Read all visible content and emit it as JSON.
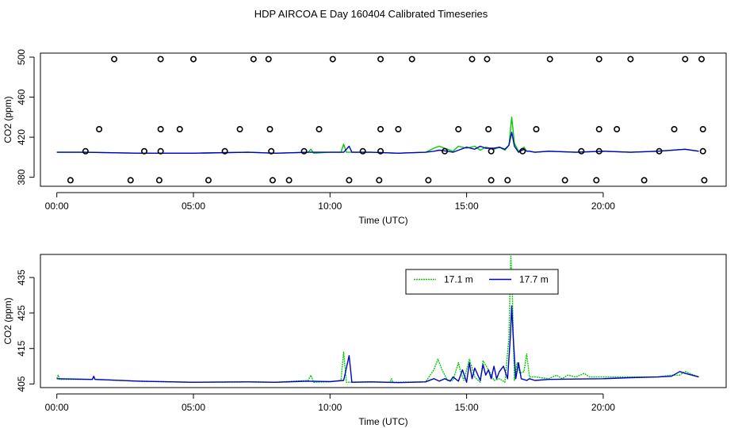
{
  "figure": {
    "title": "HDP AIRCOA E  Day 160404  Calibrated Timeseries"
  },
  "chart_data": [
    {
      "type": "scatter",
      "xlabel": "Time (UTC)",
      "ylabel": "CO2 (ppm)",
      "xlim": [
        -0.6,
        24.5
      ],
      "ylim": [
        371,
        504
      ],
      "x_ticks": [
        0,
        5,
        10,
        15,
        20
      ],
      "x_tick_labels": [
        "00:00",
        "05:00",
        "10:00",
        "15:00",
        "20:00"
      ],
      "y_ticks": [
        380,
        420,
        460,
        500
      ],
      "y_tick_labels": [
        "380",
        "420",
        "460",
        "500"
      ],
      "grid": false,
      "calibration_points": {
        "marker": "open-circle",
        "x": [
          2.1,
          3.8,
          5.0,
          7.2,
          7.75,
          10.1,
          11.85,
          13.0,
          15.2,
          15.75,
          18.05,
          19.85,
          21.0,
          23.0,
          23.6,
          1.55,
          3.8,
          4.5,
          6.7,
          7.8,
          9.6,
          11.85,
          12.5,
          14.7,
          15.8,
          17.55,
          19.85,
          20.5,
          22.6,
          23.65,
          1.05,
          3.2,
          3.8,
          6.15,
          7.85,
          9.05,
          11.2,
          11.85,
          14.2,
          15.9,
          17.05,
          19.2,
          19.85,
          22.05,
          23.65,
          0.5,
          2.7,
          3.75,
          5.55,
          7.9,
          8.5,
          10.7,
          11.8,
          13.6,
          15.9,
          16.5,
          18.6,
          19.75,
          21.5,
          23.7
        ],
        "y": [
          498,
          498,
          498,
          498,
          498,
          498,
          498,
          498,
          498,
          498,
          498,
          498,
          498,
          498,
          498,
          428,
          428,
          428,
          428,
          428,
          428,
          428,
          428,
          428,
          428,
          428,
          428,
          428,
          428,
          428,
          406,
          406,
          406,
          406,
          406,
          406,
          406,
          406,
          406,
          406,
          406,
          406,
          406,
          406,
          406,
          377,
          377,
          377,
          377,
          377,
          377,
          377,
          377,
          377,
          377,
          377,
          377,
          377,
          377,
          377
        ]
      },
      "series": [
        {
          "color": "#00cc00",
          "x": [
            0,
            1,
            3,
            5,
            7,
            8,
            9.2,
            9.3,
            9.4,
            10,
            10.4,
            10.5,
            10.6,
            11.5,
            12.5,
            13.5,
            13.8,
            14,
            14.3,
            14.5,
            14.7,
            15,
            15.3,
            15.5,
            15.7,
            16,
            16.2,
            16.4,
            16.55,
            16.65,
            16.75,
            16.9,
            17.1,
            17.2,
            17.3,
            17.5,
            18,
            19,
            20,
            21,
            22,
            23,
            23.5
          ],
          "y": [
            405,
            405,
            404,
            404,
            405,
            404,
            405,
            408,
            404,
            405,
            405,
            413,
            405,
            405,
            404,
            405,
            409,
            411,
            408,
            406,
            411,
            409,
            411,
            407,
            410,
            408,
            410,
            407,
            412,
            440,
            414,
            406,
            410,
            406,
            406,
            405,
            406,
            405,
            406,
            405,
            406,
            408,
            406
          ]
        },
        {
          "color": "#0000cc",
          "x": [
            0,
            1,
            3,
            5,
            7,
            8,
            9.2,
            10,
            10.5,
            10.7,
            10.8,
            11.5,
            12.5,
            13.5,
            13.8,
            14,
            14.3,
            14.5,
            14.7,
            15,
            15.3,
            15.5,
            15.7,
            16,
            16.2,
            16.4,
            16.55,
            16.65,
            16.75,
            16.9,
            17.1,
            17.2,
            17.3,
            17.5,
            18,
            19,
            20,
            21,
            22,
            23,
            23.5
          ],
          "y": [
            405,
            405,
            404,
            404,
            405,
            404,
            405,
            405,
            405,
            411,
            405,
            405,
            404,
            405,
            406,
            407,
            406,
            405,
            407,
            410,
            408,
            411,
            409,
            409,
            410,
            408,
            412,
            425,
            411,
            405,
            408,
            406,
            406,
            405,
            406,
            405,
            406,
            405,
            406,
            408,
            406
          ]
        }
      ]
    },
    {
      "type": "line",
      "xlabel": "Time (UTC)",
      "ylabel": "CO2 (ppm)",
      "xlim": [
        -0.6,
        24.5
      ],
      "ylim": [
        404,
        441.5
      ],
      "x_ticks": [
        0,
        5,
        10,
        15,
        20
      ],
      "x_tick_labels": [
        "00:00",
        "05:00",
        "10:00",
        "15:00",
        "20:00"
      ],
      "y_ticks": [
        405,
        415,
        425,
        435
      ],
      "y_tick_labels": [
        "405",
        "415",
        "425",
        "435"
      ],
      "grid": false,
      "legend": {
        "position": "top-right"
      },
      "series": [
        {
          "name": "17.1 m",
          "color": "#00cc00",
          "linestyle": "dotted",
          "x": [
            0,
            0.05,
            0.1,
            1.3,
            1.35,
            1.4,
            3,
            5,
            7,
            8,
            9.2,
            9.3,
            9.4,
            10,
            10.4,
            10.5,
            10.6,
            11.5,
            12.2,
            12.25,
            12.3,
            13.5,
            13.8,
            13.95,
            14.1,
            14.3,
            14.5,
            14.7,
            14.8,
            14.9,
            15,
            15.1,
            15.3,
            15.5,
            15.6,
            15.8,
            16,
            16.2,
            16.4,
            16.55,
            16.62,
            16.67,
            16.75,
            16.85,
            16.95,
            17.1,
            17.2,
            17.3,
            17.5,
            18,
            18.3,
            18.5,
            18.7,
            19,
            19.3,
            19.5,
            20,
            21,
            22,
            22.5,
            22.8,
            23,
            23.5
          ],
          "y": [
            406.5,
            407.5,
            406.3,
            406.3,
            407,
            406.3,
            405.8,
            405.5,
            405.6,
            405.5,
            406,
            407.5,
            405.5,
            405.6,
            406,
            414,
            405.5,
            405.6,
            405.5,
            406.5,
            405.5,
            405.6,
            409,
            412,
            409,
            406,
            406,
            411,
            408,
            406,
            409,
            412,
            407,
            405.5,
            411.5,
            409,
            406,
            406.5,
            405.5,
            418,
            441,
            431,
            406,
            411,
            408,
            408.5,
            413.5,
            407,
            407,
            406.5,
            407.5,
            406.5,
            407.5,
            407,
            408,
            407,
            407,
            407,
            407,
            407.5,
            407.5,
            408.5,
            407
          ]
        },
        {
          "name": "17.7 m",
          "color": "#0000cc",
          "linestyle": "solid",
          "x": [
            0,
            1.3,
            1.35,
            1.4,
            3,
            5,
            7,
            8,
            9.2,
            10,
            10.5,
            10.7,
            10.8,
            11.5,
            12.5,
            13.5,
            13.8,
            14,
            14.2,
            14.4,
            14.5,
            14.7,
            14.85,
            15,
            15.1,
            15.2,
            15.3,
            15.5,
            15.6,
            15.7,
            15.8,
            15.9,
            16,
            16.1,
            16.2,
            16.35,
            16.5,
            16.6,
            16.65,
            16.7,
            16.8,
            16.9,
            17.0,
            17.2,
            17.3,
            17.5,
            18,
            19,
            20,
            21,
            22,
            22.5,
            22.8,
            23,
            23.5
          ],
          "y": [
            406.5,
            406.3,
            407.2,
            406.3,
            405.8,
            405.5,
            405.6,
            405.5,
            405.8,
            405.7,
            406,
            413,
            405.5,
            405.6,
            405.4,
            405.6,
            406.5,
            405.8,
            406.5,
            405.8,
            407,
            405.8,
            409,
            405.5,
            411,
            406.5,
            409.5,
            406,
            410.5,
            407.5,
            409,
            406.5,
            410,
            406.5,
            408.5,
            410,
            406.5,
            418,
            427,
            419,
            406.5,
            411,
            406.5,
            406,
            406.5,
            406,
            406.3,
            406.4,
            406.5,
            406.8,
            407,
            407.2,
            408.5,
            408,
            407
          ]
        }
      ]
    }
  ]
}
